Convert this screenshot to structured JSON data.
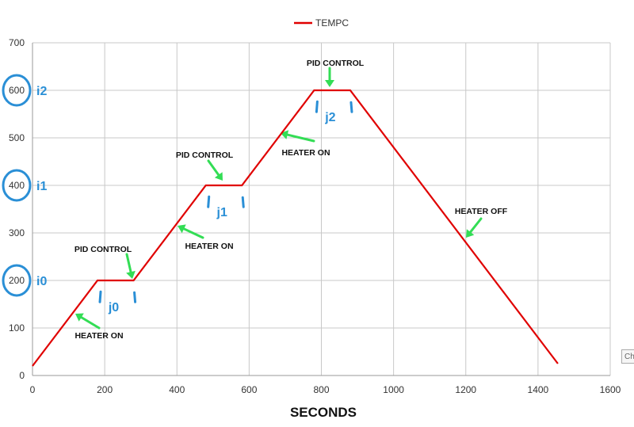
{
  "chart_data": {
    "type": "line",
    "xlabel": "SECONDS",
    "xlim": [
      0,
      1600
    ],
    "ylim": [
      0,
      700
    ],
    "xticks": [
      0,
      200,
      400,
      600,
      800,
      1000,
      1200,
      1400,
      1600
    ],
    "yticks": [
      0,
      100,
      200,
      300,
      400,
      500,
      600,
      700
    ],
    "grid": true,
    "legend": "top-center",
    "series": [
      {
        "name": "TEMPC",
        "color": "#e00000",
        "x": [
          0,
          180,
          280,
          480,
          580,
          780,
          880,
          1455
        ],
        "y": [
          20,
          200,
          200,
          400,
          400,
          600,
          600,
          25
        ]
      }
    ],
    "annotations": [
      {
        "text": "HEATER ON",
        "x": 120,
        "y": 85
      },
      {
        "text": "PID CONTROL",
        "x": 195,
        "y": 262
      },
      {
        "text": "HEATER ON",
        "x": 490,
        "y": 268
      },
      {
        "text": "PID CONTROL",
        "x": 480,
        "y": 462
      },
      {
        "text": "HEATER ON",
        "x": 760,
        "y": 470
      },
      {
        "text": "PID CONTROL",
        "x": 840,
        "y": 652
      },
      {
        "text": "HEATER OFF",
        "x": 1240,
        "y": 345
      }
    ],
    "level_marks": [
      {
        "text": "i0",
        "y": 200
      },
      {
        "text": "i1",
        "y": 400
      },
      {
        "text": "i2",
        "y": 600
      }
    ],
    "segment_marks": [
      {
        "text": "j0",
        "x": 225,
        "y": 178
      },
      {
        "text": "j1",
        "x": 525,
        "y": 378
      },
      {
        "text": "j2",
        "x": 825,
        "y": 578
      }
    ]
  },
  "ui": {
    "side_tab": "Ch"
  }
}
